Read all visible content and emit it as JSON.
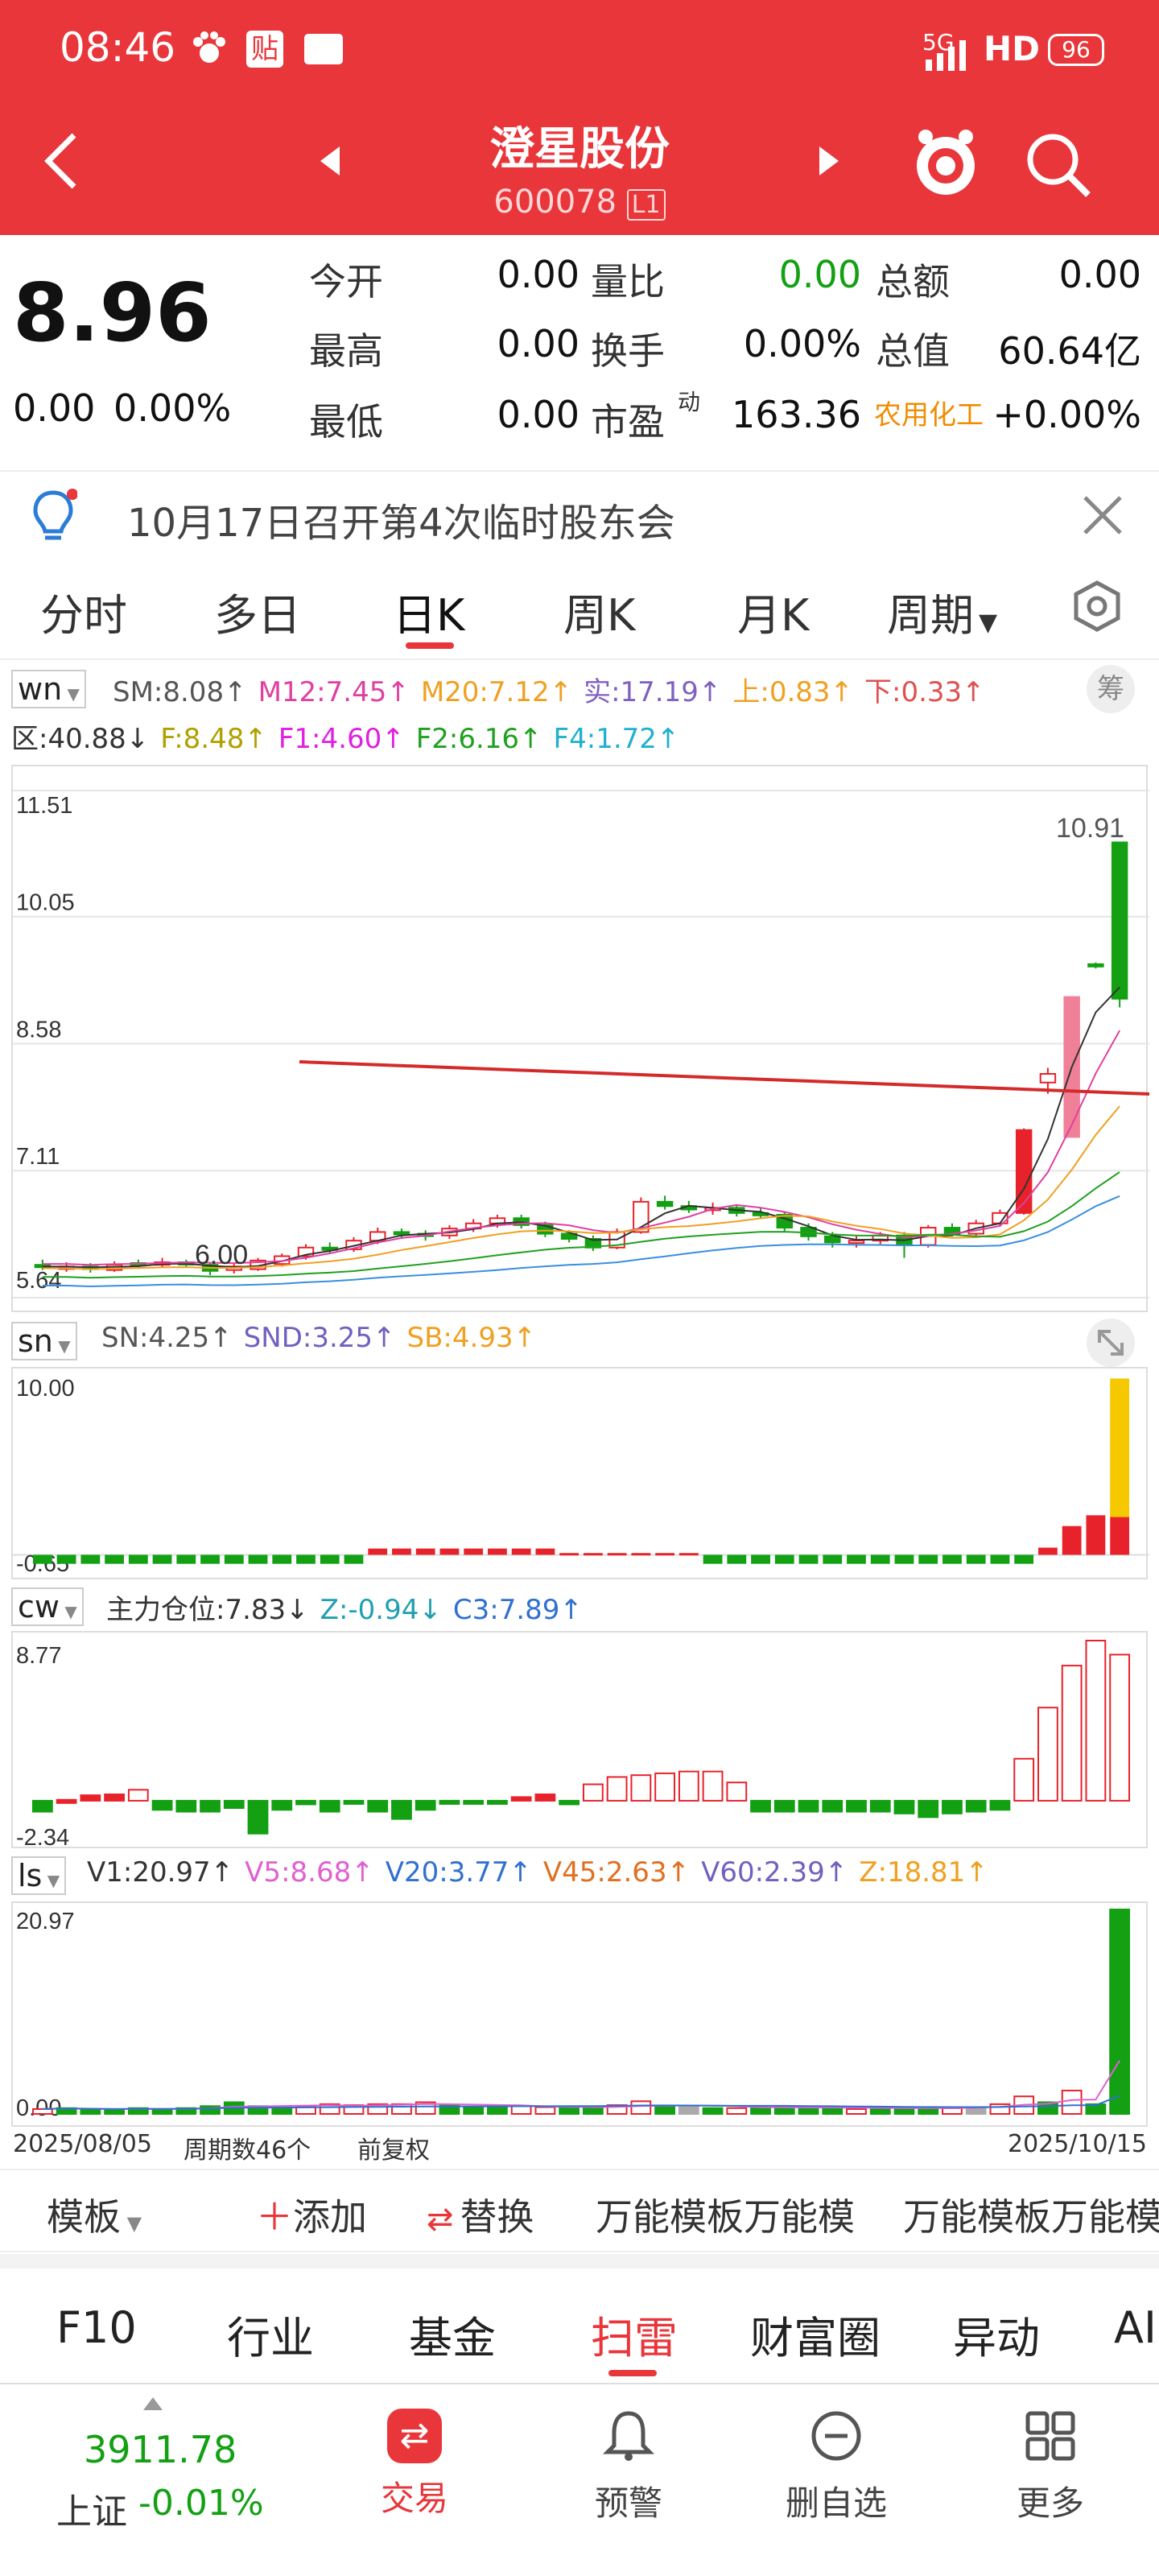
{
  "status_bar": {
    "time": "08:46",
    "signal": "5G",
    "hd": "HD",
    "battery": "96"
  },
  "header": {
    "title": "澄星股份",
    "code": "600078",
    "code_tag": "L1"
  },
  "quote": {
    "price": "8.96",
    "change": "0.00",
    "change_pct": "0.00%",
    "rows": [
      {
        "l1": "今开",
        "v1": "0.00",
        "l2": "量比",
        "v2": "0.00",
        "l3": "总额",
        "v3": "0.00"
      },
      {
        "l1": "最高",
        "v1": "0.00",
        "l2": "换手",
        "v2": "0.00%",
        "l3": "总值",
        "v3": "60.64亿"
      },
      {
        "l1": "最低",
        "v1": "0.00",
        "l2": "市盈",
        "l2_sup": "动",
        "v2": "163.36",
        "l3": "农用化工",
        "v3": "+0.00%"
      }
    ]
  },
  "notice": {
    "text": "10月17日召开第4次临时股东会"
  },
  "tabs": [
    "分时",
    "多日",
    "日K",
    "周K",
    "月K",
    "周期"
  ],
  "active_tab": "日K",
  "ind_wn": {
    "selector": "wn",
    "items": [
      {
        "t": "SM:8.08↑",
        "c": "#555"
      },
      {
        "t": "M12:7.45↑",
        "c": "#e040a0"
      },
      {
        "t": "M20:7.12↑",
        "c": "#f0a020"
      },
      {
        "t": "实:17.19↑",
        "c": "#8060c0"
      },
      {
        "t": "上:0.83↑",
        "c": "#f0a020"
      },
      {
        "t": "下:0.33↑",
        "c": "#e05050"
      }
    ],
    "items2": [
      {
        "t": "区:40.88↓",
        "c": "#333"
      },
      {
        "t": "F:8.48↑",
        "c": "#b0a000"
      },
      {
        "t": "F1:4.60↑",
        "c": "#e020e0"
      },
      {
        "t": "F2:6.16↑",
        "c": "#20a020"
      },
      {
        "t": "F4:1.72↑",
        "c": "#20b0d0"
      }
    ],
    "chip": "筹"
  },
  "kline": {
    "axis": [
      "11.51",
      "10.05",
      "8.58",
      "7.11",
      "5.64"
    ],
    "high_label": "10.91",
    "low_label": "6.00"
  },
  "ind_sn": {
    "selector": "sn",
    "items": [
      {
        "t": "SN:4.25↑",
        "c": "#555"
      },
      {
        "t": "SND:3.25↑",
        "c": "#7060c0"
      },
      {
        "t": "SB:4.93↑",
        "c": "#f0a020"
      }
    ],
    "axis": [
      "10.00",
      "-0.65"
    ]
  },
  "ind_cw": {
    "selector": "cw",
    "items": [
      {
        "t": "主力仓位:7.83↓",
        "c": "#333"
      },
      {
        "t": "Z:-0.94↓",
        "c": "#20a0b0"
      },
      {
        "t": "C3:7.89↑",
        "c": "#3070d0"
      }
    ],
    "axis": [
      "8.77",
      "-2.34"
    ]
  },
  "ind_ls": {
    "selector": "ls",
    "items": [
      {
        "t": "V1:20.97↑",
        "c": "#333"
      },
      {
        "t": "V5:8.68↑",
        "c": "#e060d0"
      },
      {
        "t": "V20:3.77↑",
        "c": "#3070d0"
      },
      {
        "t": "V45:2.63↑",
        "c": "#e07020"
      },
      {
        "t": "V60:2.39↑",
        "c": "#7060c0"
      },
      {
        "t": "Z:18.81↑",
        "c": "#f0a020"
      }
    ],
    "axis": [
      "20.97",
      "0.00"
    ]
  },
  "date_row": {
    "start": "2025/08/05",
    "count": "周期数46个",
    "fq": "前复权",
    "end": "2025/10/15"
  },
  "template_bar": {
    "template": "模板",
    "add": "添加",
    "replace": "替换",
    "item1": "万能模板万能模",
    "item2": "万能模板万能模"
  },
  "nav_tabs": [
    "F10",
    "行业",
    "基金",
    "扫雷",
    "财富圈",
    "异动",
    "AI"
  ],
  "nav_active": "扫雷",
  "bottom": {
    "index_value": "3911.78",
    "index_name": "上证",
    "index_change": "-0.01%",
    "items": [
      "交易",
      "预警",
      "删自选",
      "更多"
    ]
  },
  "colors": {
    "brand_red": "#e8363a",
    "up_red": "#e8222a",
    "down_green": "#13a013",
    "accent_orange": "#f08c00"
  }
}
